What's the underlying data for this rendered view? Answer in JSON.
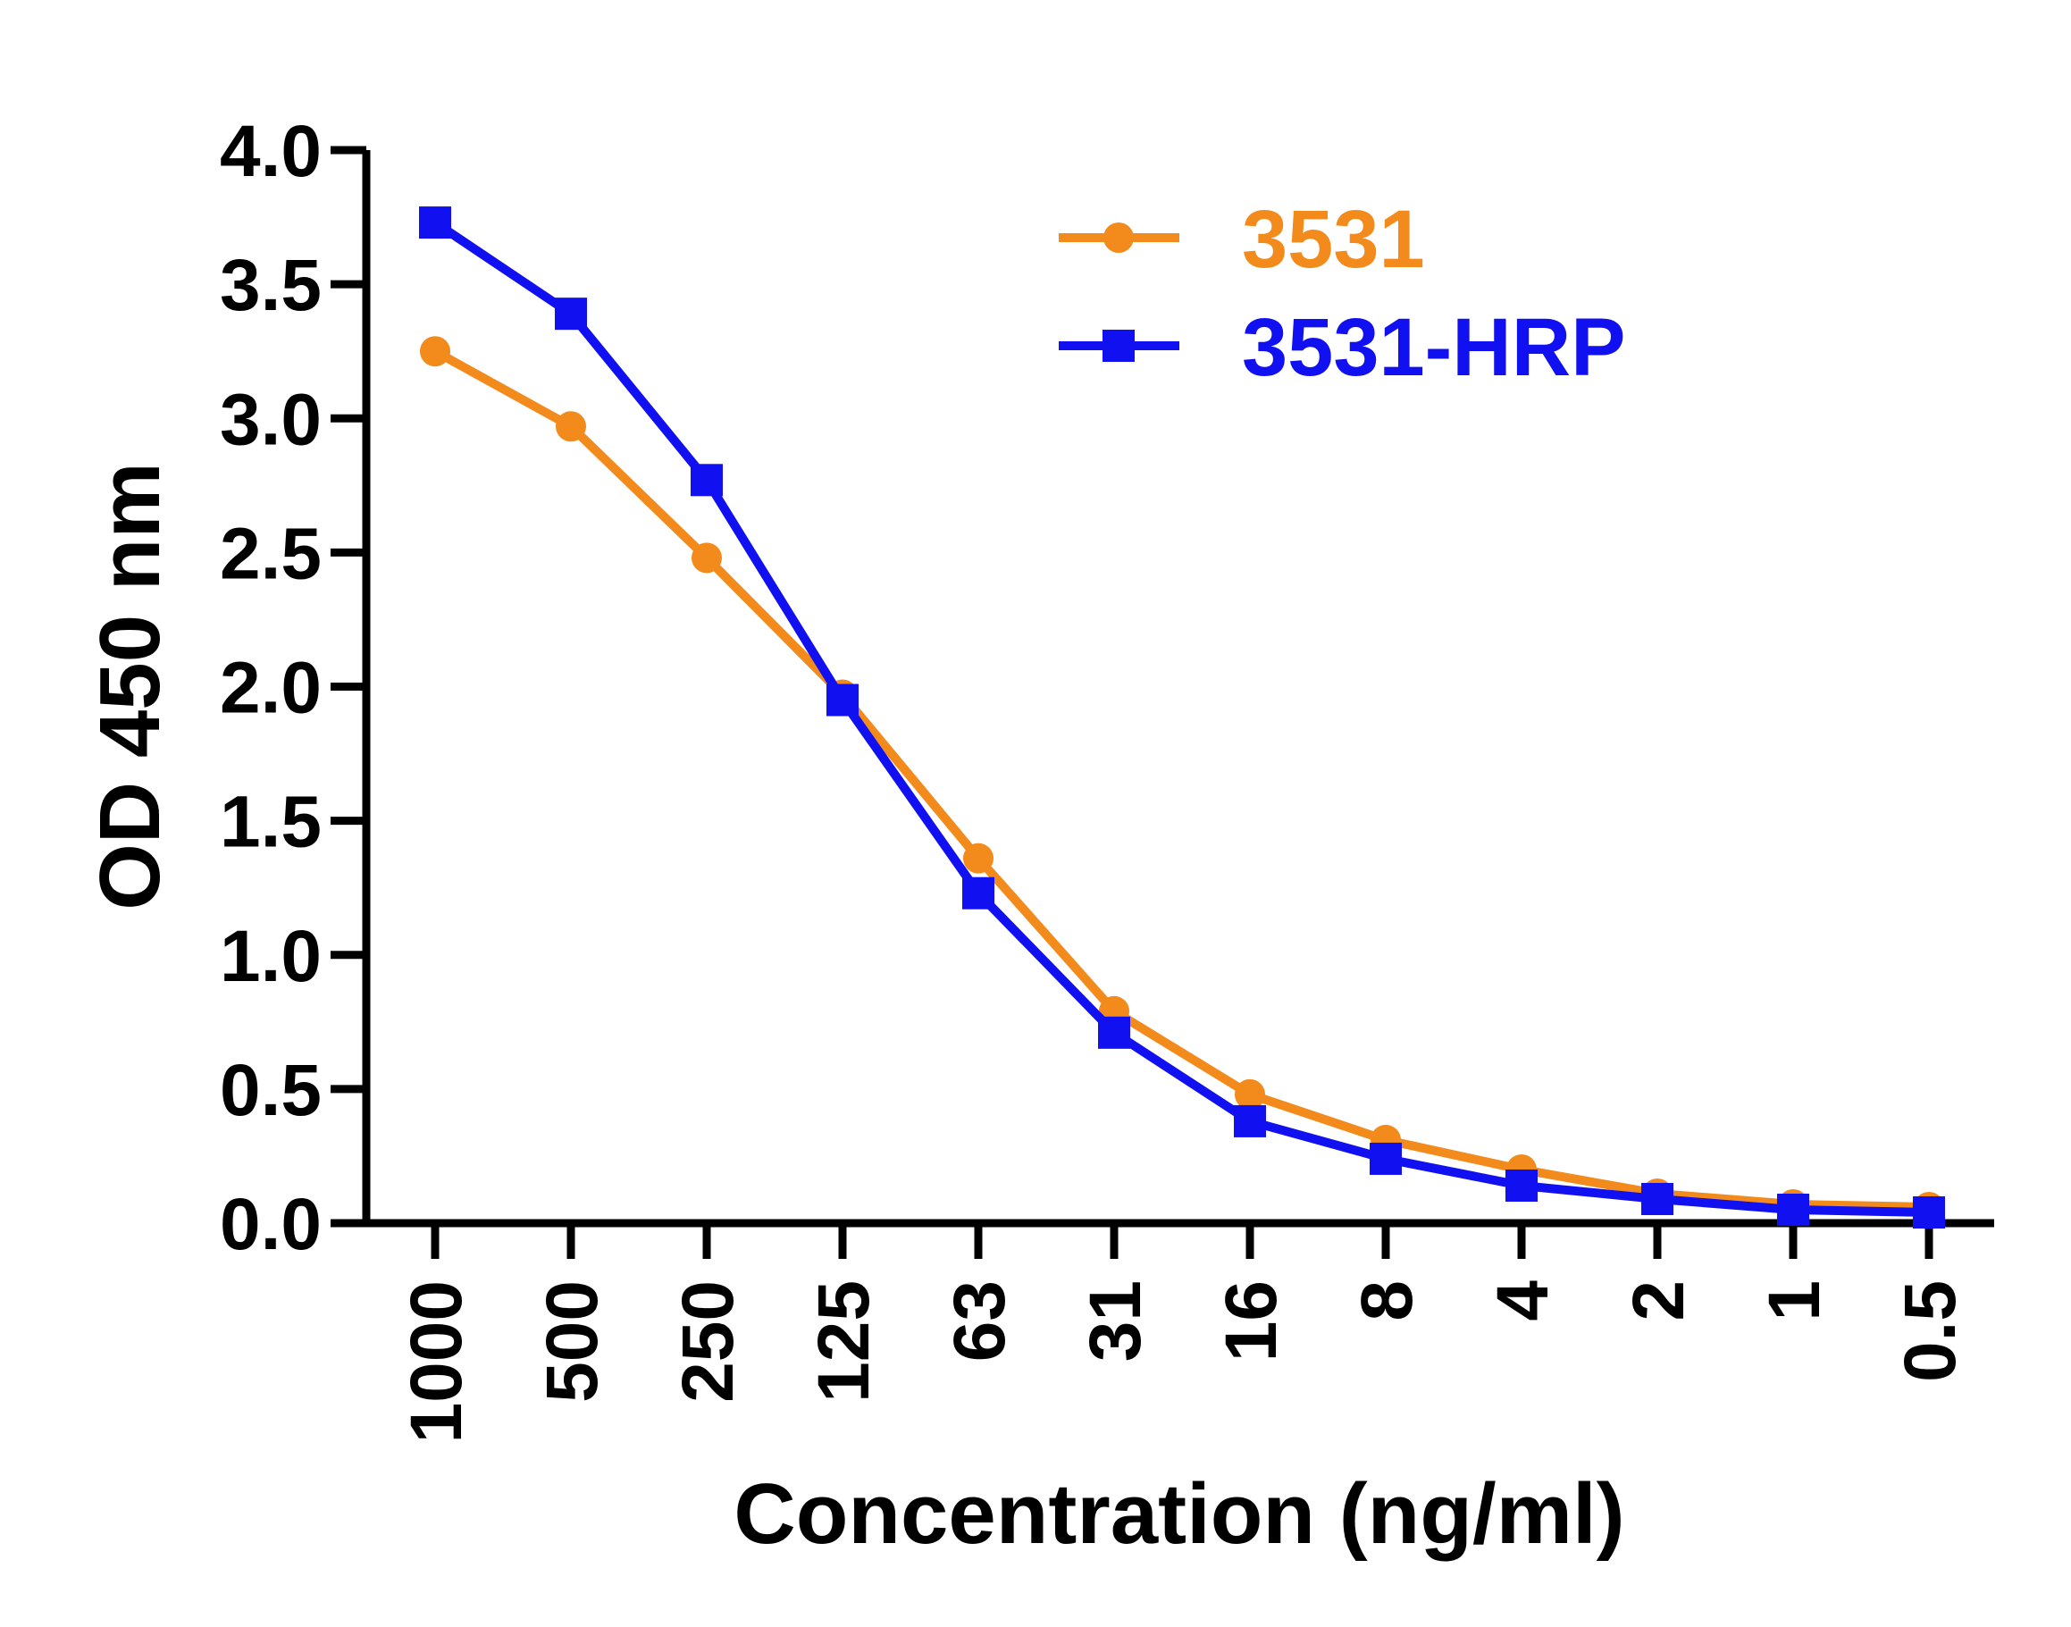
{
  "chart_data": {
    "type": "line",
    "title": "",
    "xlabel": "Concentration (ng/ml)",
    "ylabel": "OD 450 nm",
    "categories": [
      "1000",
      "500",
      "250",
      "125",
      "63",
      "31",
      "16",
      "8",
      "4",
      "2",
      "1",
      "0.5"
    ],
    "ylim": [
      0.0,
      4.0
    ],
    "yticks": [
      "0.0",
      "0.5",
      "1.0",
      "1.5",
      "2.0",
      "2.5",
      "3.0",
      "3.5",
      "4.0"
    ],
    "grid": false,
    "legend_position": "top-right",
    "series": [
      {
        "name": "3531",
        "color": "#F28A1C",
        "marker": "circle",
        "values": [
          3.25,
          2.97,
          2.48,
          1.97,
          1.36,
          0.79,
          0.48,
          0.31,
          0.2,
          0.11,
          0.07,
          0.06
        ]
      },
      {
        "name": "3531-HRP",
        "color": "#1010F0",
        "marker": "square",
        "values": [
          3.73,
          3.39,
          2.77,
          1.95,
          1.23,
          0.71,
          0.38,
          0.24,
          0.14,
          0.09,
          0.05,
          0.04
        ]
      }
    ]
  }
}
